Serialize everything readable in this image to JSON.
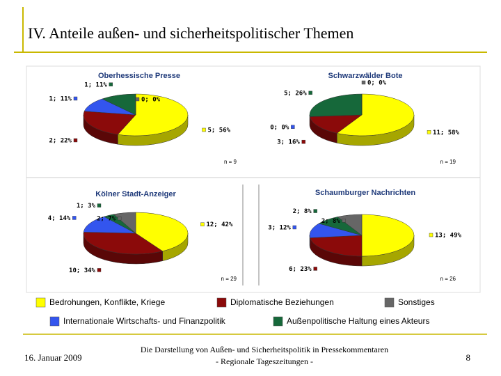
{
  "slide": {
    "title": "IV. Anteile außen- und sicherheitspolitischer Themen",
    "date": "16. Januar 2009",
    "footer": [
      "Die Darstellung von Außen- und Sicherheitspolitik in Pressekommentaren",
      "- Regionale Tageszeitungen -"
    ],
    "page": 8
  },
  "chart_data": [
    {
      "type": "pie",
      "title": "Oberhessische Presse",
      "note": "n = 9",
      "categories": [
        "Bedrohungen, Konflikte, Kriege",
        "Diplomatische Beziehungen",
        "Internationale Wirtschafts- und Finanzpolitik",
        "Außenpolitische Haltung eines Akteurs",
        "Sonstiges"
      ],
      "colors": [
        "#ffff00",
        "#8b0a0a",
        "#3355ee",
        "#16683a",
        "#666666"
      ],
      "values": [
        5,
        2,
        1,
        1,
        0
      ],
      "value_labels": [
        "5; 56%",
        "2; 22%",
        "1; 11%",
        "1; 11%",
        "0; 0%"
      ]
    },
    {
      "type": "pie",
      "title": "Schwarzwälder Bote",
      "note": "n = 19",
      "categories": [
        "Bedrohungen, Konflikte, Kriege",
        "Diplomatische Beziehungen",
        "Internationale Wirtschafts- und Finanzpolitik",
        "Außenpolitische Haltung eines Akteurs",
        "Sonstiges"
      ],
      "colors": [
        "#ffff00",
        "#8b0a0a",
        "#3355ee",
        "#16683a",
        "#666666"
      ],
      "values": [
        11,
        3,
        0,
        5,
        0
      ],
      "value_labels": [
        "11; 58%",
        "3; 16%",
        "0; 0%",
        "5; 26%",
        "0; 0%"
      ]
    },
    {
      "type": "pie",
      "title": "Kölner Stadt-Anzeiger",
      "note": "n = 29",
      "categories": [
        "Bedrohungen, Konflikte, Kriege",
        "Diplomatische Beziehungen",
        "Internationale Wirtschafts- und Finanzpolitik",
        "Außenpolitische Haltung eines Akteurs",
        "Sonstiges"
      ],
      "colors": [
        "#ffff00",
        "#8b0a0a",
        "#3355ee",
        "#16683a",
        "#666666"
      ],
      "values": [
        12,
        10,
        4,
        1,
        2
      ],
      "value_labels": [
        "12; 42%",
        "10; 34%",
        "4; 14%",
        "1; 3%",
        "2; 7%"
      ]
    },
    {
      "type": "pie",
      "title": "Schaumburger Nachrichten",
      "note": "n = 26",
      "categories": [
        "Bedrohungen, Konflikte, Kriege",
        "Diplomatische Beziehungen",
        "Internationale Wirtschafts- und Finanzpolitik",
        "Außenpolitische Haltung eines Akteurs",
        "Sonstiges"
      ],
      "colors": [
        "#ffff00",
        "#8b0a0a",
        "#3355ee",
        "#16683a",
        "#666666"
      ],
      "values": [
        13,
        6,
        3,
        2,
        2
      ],
      "value_labels": [
        "13; 49%",
        "6; 23%",
        "3; 12%",
        "2; 8%",
        "2; 8%"
      ]
    }
  ]
}
